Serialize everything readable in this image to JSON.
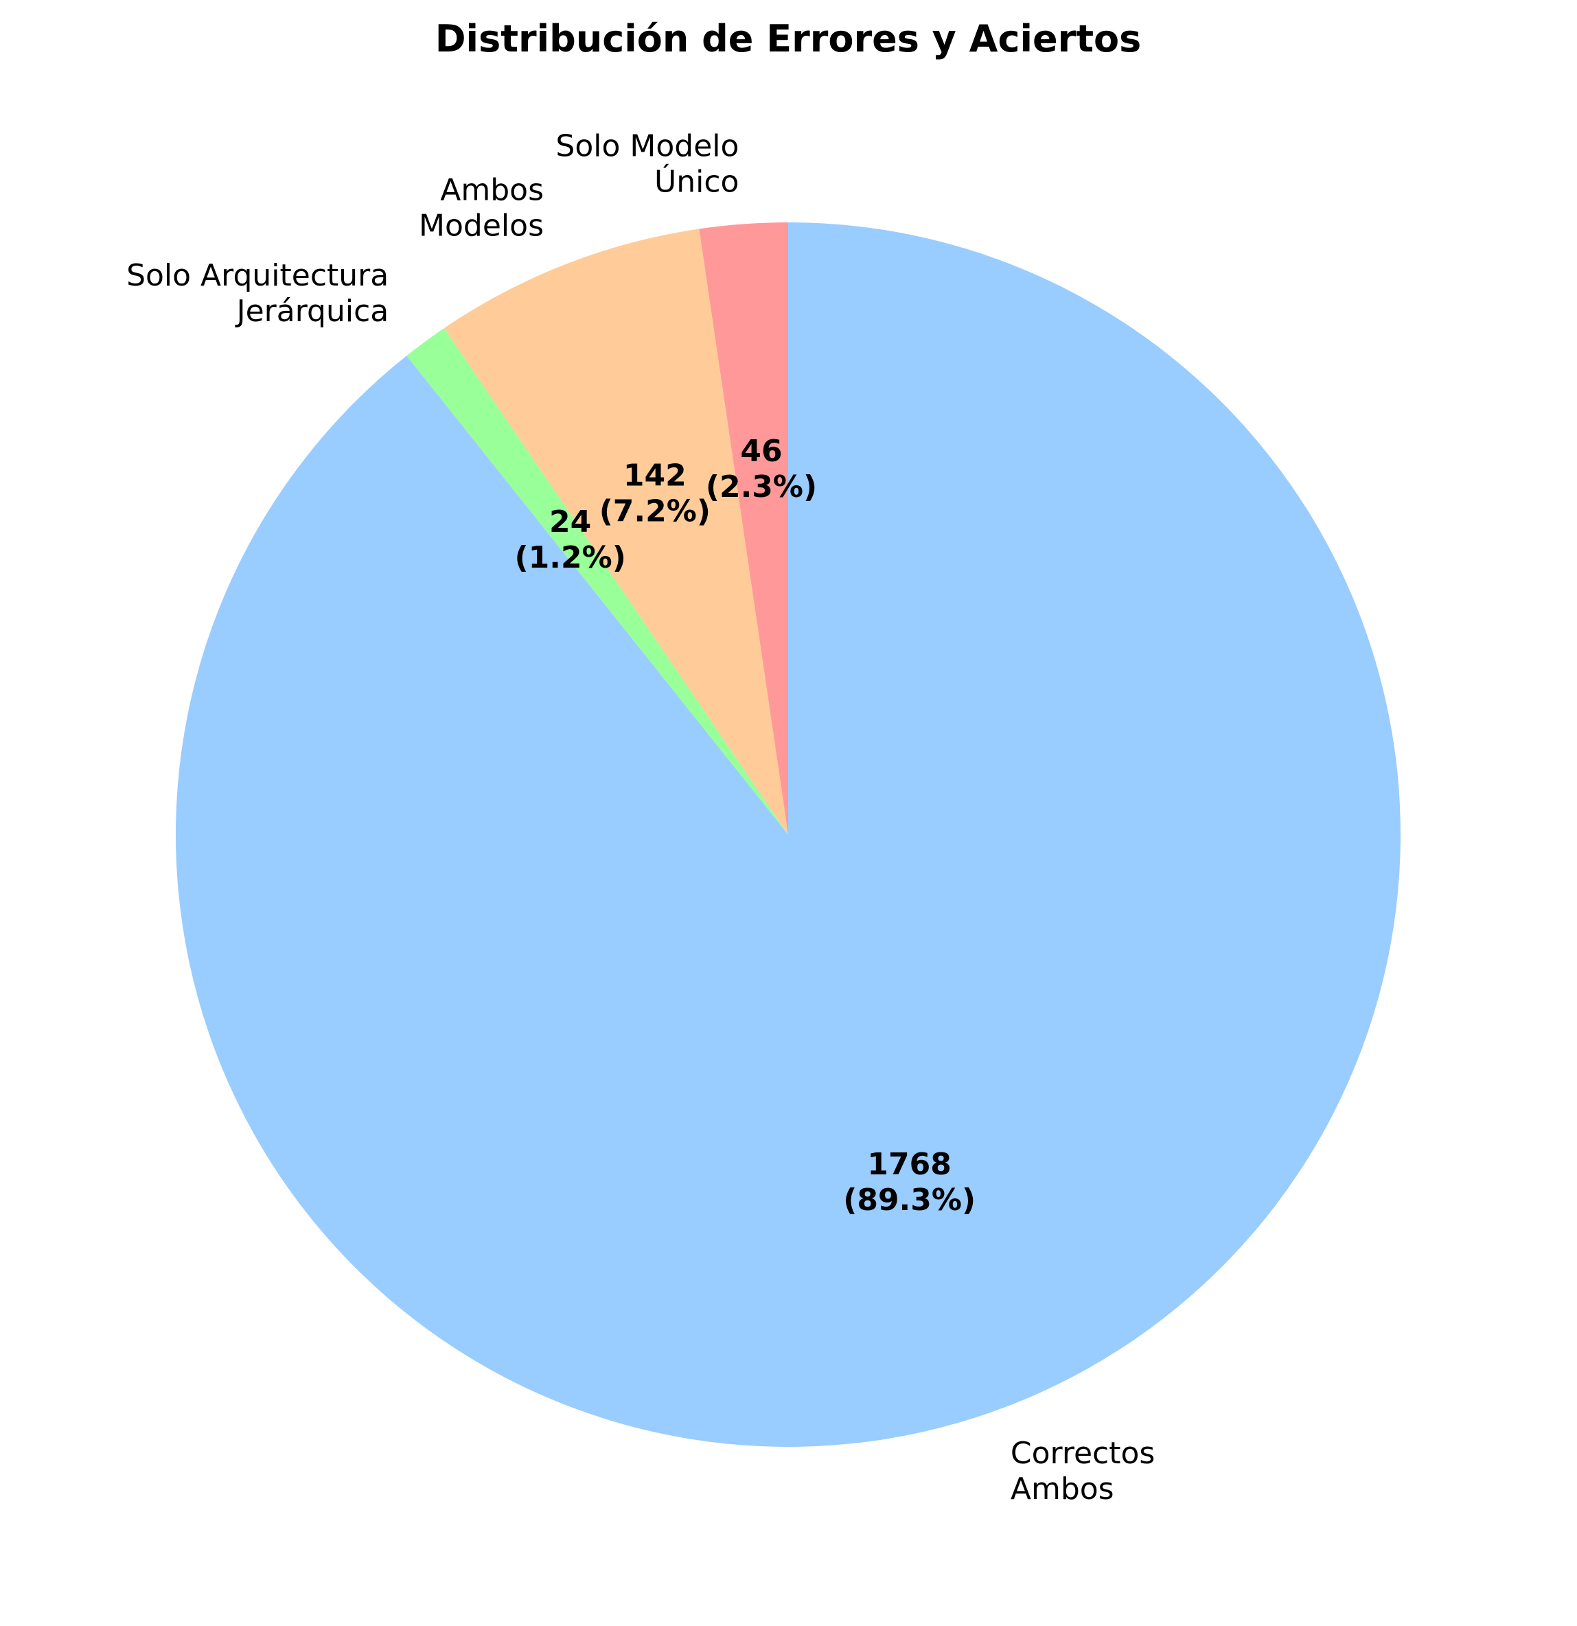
{
  "chart_data": {
    "type": "pie",
    "title": "Distribución de Errores y Aciertos",
    "slices": [
      {
        "label_lines": [
          "Solo Modelo",
          "Único"
        ],
        "value": 46,
        "percent": "2.3%",
        "color": "#ff9999"
      },
      {
        "label_lines": [
          "Ambos",
          "Modelos"
        ],
        "value": 142,
        "percent": "7.2%",
        "color": "#ffcc99"
      },
      {
        "label_lines": [
          "Solo Arquitectura",
          "Jerárquica"
        ],
        "value": 24,
        "percent": "1.2%",
        "color": "#99ff99"
      },
      {
        "label_lines": [
          "Correctos",
          "Ambos"
        ],
        "value": 1768,
        "percent": "89.3%",
        "color": "#99ccff"
      }
    ],
    "start_angle_deg": 90,
    "direction": "counterclockwise",
    "legend": "none"
  }
}
